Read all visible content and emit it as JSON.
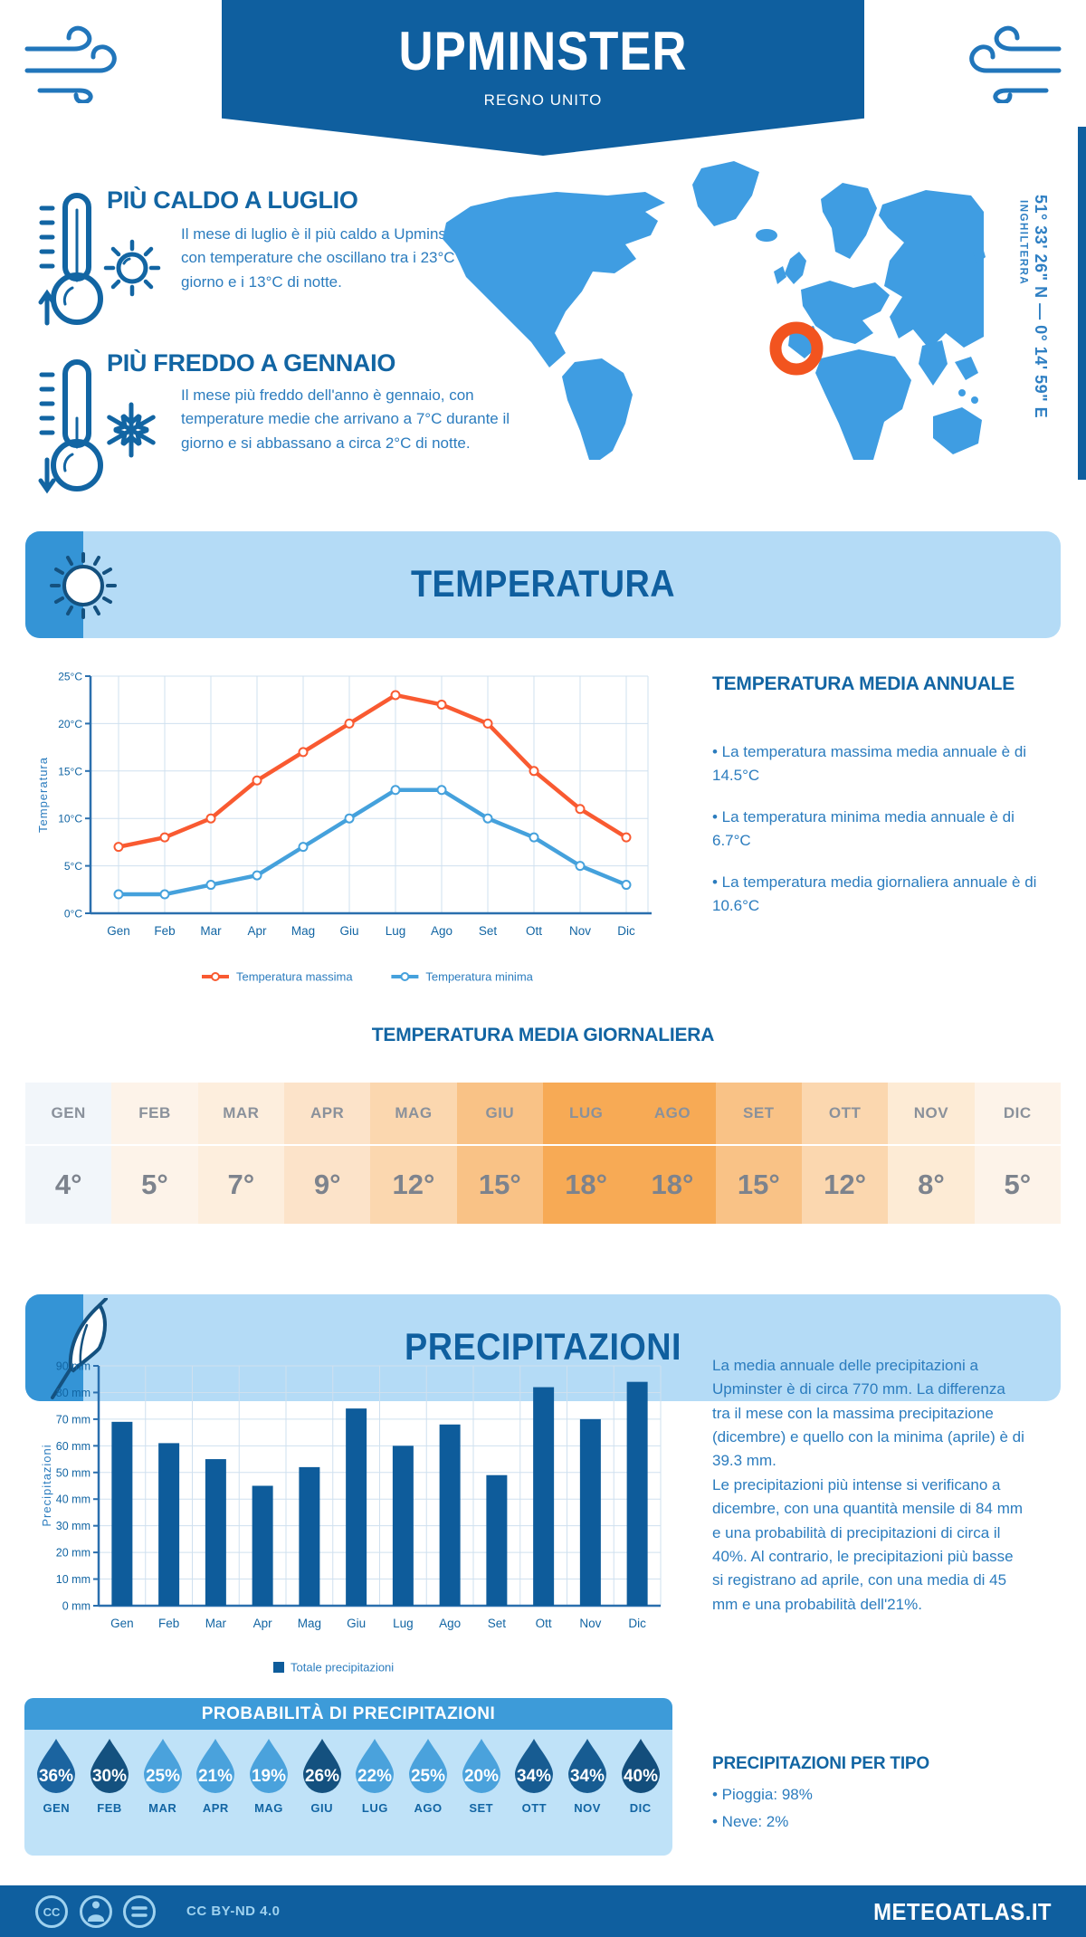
{
  "header": {
    "title": "UPMINSTER",
    "subtitle": "REGNO UNITO"
  },
  "location": {
    "coordinates": "51° 33' 26\" N — 0° 14' 59\" E",
    "region": "INGHILTERRA"
  },
  "highlights": {
    "hot": {
      "title": "PIÙ CALDO A LUGLIO",
      "text": "Il mese di luglio è il più caldo a Upminster, con temperature che oscillano tra i 23°C di giorno e i 13°C di notte."
    },
    "cold": {
      "title": "PIÙ FREDDO A GENNAIO",
      "text": "Il mese più freddo dell'anno è gennaio, con temperature medie che arrivano a 7°C durante il giorno e si abbassano a circa 2°C di notte."
    }
  },
  "temperature": {
    "banner": "TEMPERATURA",
    "annual_title": "TEMPERATURA MEDIA ANNUALE",
    "annual_bullets": [
      "• La temperatura massima media annuale è di 14.5°C",
      "• La temperatura minima media annuale è di 6.7°C",
      "• La temperatura media giornaliera annuale è di 10.6°C"
    ],
    "daily_title": "TEMPERATURA MEDIA GIORNALIERA",
    "daily_months": [
      "GEN",
      "FEB",
      "MAR",
      "APR",
      "MAG",
      "GIU",
      "LUG",
      "AGO",
      "SET",
      "OTT",
      "NOV",
      "DIC"
    ],
    "daily_values": [
      "4°",
      "5°",
      "7°",
      "9°",
      "12°",
      "15°",
      "18°",
      "18°",
      "15°",
      "12°",
      "8°",
      "5°"
    ],
    "daily_cell_colors": [
      "#f2f6fa",
      "#fdf3e9",
      "#fdeedd",
      "#fce3c9",
      "#fbd7af",
      "#f9c286",
      "#f7aa55",
      "#f7aa55",
      "#f9c286",
      "#fbd7af",
      "#fdebd5",
      "#fdf3e9"
    ]
  },
  "precipitation": {
    "banner": "PRECIPITAZIONI",
    "paragraphs": [
      "La media annuale delle precipitazioni a Upminster è di circa 770 mm. La differenza tra il mese con la massima precipitazione (dicembre) e quello con la minima (aprile) è di 39.3 mm.",
      "Le precipitazioni più intense si verificano a dicembre, con una quantità mensile di 84 mm e una probabilità di precipitazioni di circa il 40%. Al contrario, le precipitazioni più basse si registrano ad aprile, con una media di 45 mm e una probabilità dell'21%."
    ],
    "probability_title": "PROBABILITÀ DI PRECIPITAZIONI",
    "prob_months": [
      "GEN",
      "FEB",
      "MAR",
      "APR",
      "MAG",
      "GIU",
      "LUG",
      "AGO",
      "SET",
      "OTT",
      "NOV",
      "DIC"
    ],
    "prob_values": [
      "36%",
      "30%",
      "25%",
      "21%",
      "19%",
      "26%",
      "22%",
      "25%",
      "20%",
      "34%",
      "34%",
      "40%"
    ],
    "prob_colors": [
      "#1b64a0",
      "#14517f",
      "#4aa2dc",
      "#4aa2dc",
      "#4aa2dc",
      "#14517f",
      "#4aa2dc",
      "#4aa2dc",
      "#4aa2dc",
      "#175c92",
      "#175c92",
      "#134e7c"
    ],
    "types_title": "PRECIPITAZIONI PER TIPO",
    "types_bullets": [
      "• Pioggia: 98%",
      "• Neve: 2%"
    ]
  },
  "chart_data": [
    {
      "type": "line",
      "title": "",
      "categories": [
        "Gen",
        "Feb",
        "Mar",
        "Apr",
        "Mag",
        "Giu",
        "Lug",
        "Ago",
        "Set",
        "Ott",
        "Nov",
        "Dic"
      ],
      "series": [
        {
          "name": "Temperatura massima",
          "color": "#f95a31",
          "values": [
            7,
            8,
            10,
            14,
            17,
            20,
            23,
            22,
            20,
            15,
            11,
            8
          ]
        },
        {
          "name": "Temperatura minima",
          "color": "#45a1dc",
          "values": [
            2,
            2,
            3,
            4,
            7,
            10,
            13,
            13,
            10,
            8,
            5,
            3
          ]
        }
      ],
      "xlabel": "",
      "ylabel": "Temperatura",
      "ylim": [
        0,
        25
      ],
      "ytick_step": 5,
      "ytick_suffix": "°C",
      "grid": true,
      "legend_position": "bottom"
    },
    {
      "type": "bar",
      "title": "",
      "name": "Totale precipitazioni",
      "categories": [
        "Gen",
        "Feb",
        "Mar",
        "Apr",
        "Mag",
        "Giu",
        "Lug",
        "Ago",
        "Set",
        "Ott",
        "Nov",
        "Dic"
      ],
      "values": [
        69,
        61,
        55,
        45,
        52,
        74,
        60,
        68,
        49,
        82,
        70,
        84
      ],
      "color": "#0e5c9b",
      "xlabel": "",
      "ylabel": "Precipitazioni",
      "ylim": [
        0,
        90
      ],
      "ytick_step": 10,
      "ytick_suffix": " mm",
      "grid": true,
      "legend_position": "bottom"
    }
  ],
  "footer": {
    "license": "CC BY-ND 4.0",
    "site": "METEOATLAS.IT"
  },
  "colors": {
    "primary_dark": "#0f5f9f",
    "heading_blue": "#1265a3",
    "body_blue": "#2b7cbe",
    "section_bg": "#b4dbf6",
    "accent_blue": "#3494d6",
    "map_blue": "#3f9de2",
    "marker_orange": "#f2541f",
    "grid_line": "#cfe0ef",
    "axis_blue": "#2a6fae"
  }
}
